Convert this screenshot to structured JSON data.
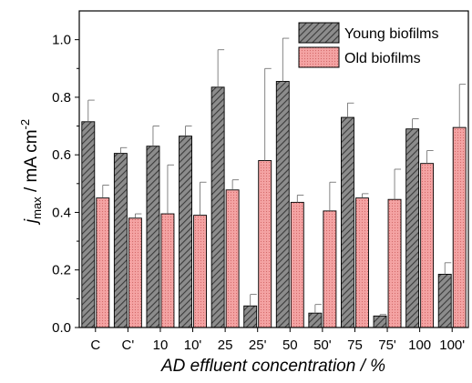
{
  "chart_data": {
    "type": "bar",
    "title": "",
    "xlabel": "AD effluent concentration / %",
    "ylabel": {
      "main": "j",
      "sub": "max",
      "mid": " / mA cm",
      "sup": "-2"
    },
    "ylim": [
      0.0,
      1.1
    ],
    "yticks": [
      0.0,
      0.2,
      0.4,
      0.6,
      0.8,
      1.0
    ],
    "ytick_labels": [
      "0.0",
      "0.2",
      "0.4",
      "0.6",
      "0.8",
      "1.0"
    ],
    "categories": [
      "C",
      "C'",
      "10",
      "10'",
      "25",
      "25'",
      "50",
      "50'",
      "75",
      "75'",
      "100",
      "100'"
    ],
    "legend_position": "top-right",
    "grid": false,
    "series": [
      {
        "name": "Young biofilms",
        "color": "#6b6b6b",
        "pattern": "diagonal-hatch",
        "values": [
          0.715,
          0.605,
          0.63,
          0.665,
          0.835,
          0.075,
          0.855,
          0.05,
          0.73,
          0.04,
          0.69,
          0.185
        ],
        "errors": [
          0.075,
          0.02,
          0.07,
          0.035,
          0.13,
          0.04,
          0.15,
          0.03,
          0.05,
          0.005,
          0.035,
          0.04
        ]
      },
      {
        "name": "Old biofilms",
        "color": "#f08c8c",
        "pattern": "dots",
        "values": [
          0.45,
          0.38,
          0.395,
          0.39,
          0.478,
          0.58,
          0.435,
          0.405,
          0.45,
          0.445,
          0.57,
          0.695
        ],
        "errors": [
          0.045,
          0.015,
          0.17,
          0.115,
          0.035,
          0.32,
          0.025,
          0.1,
          0.015,
          0.105,
          0.045,
          0.15
        ]
      }
    ]
  }
}
